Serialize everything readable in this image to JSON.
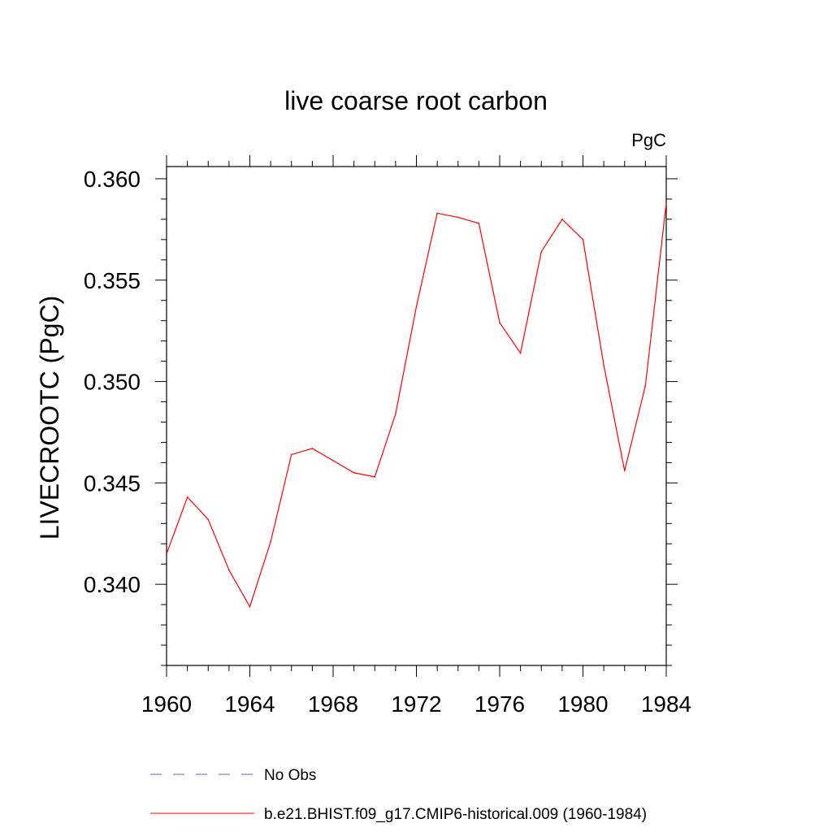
{
  "chart_data": {
    "type": "line",
    "title": "live coarse root carbon",
    "units_label": "PgC",
    "ylabel": "LIVECROOTC  (PgC)",
    "xlabel": "",
    "xlim": [
      1960,
      1984
    ],
    "ylim": [
      0.336,
      0.3606
    ],
    "x_ticks": [
      1960,
      1964,
      1968,
      1972,
      1976,
      1980,
      1984
    ],
    "x_tick_labels": [
      "1960",
      "1964",
      "1968",
      "1972",
      "1976",
      "1980",
      "1984"
    ],
    "y_ticks": [
      0.34,
      0.345,
      0.35,
      0.355,
      0.36
    ],
    "y_tick_labels": [
      "0.340",
      "0.345",
      "0.350",
      "0.355",
      "0.360"
    ],
    "grid": false,
    "legend_position": "bottom",
    "series": [
      {
        "name": "No Obs",
        "color": "#6a5acd",
        "dash": "dashed",
        "x": [],
        "y": []
      },
      {
        "name": "b.e21.BHIST.f09_g17.CMIP6-historical.009 (1960-1984)",
        "color": "#ff0000",
        "dash": "solid",
        "x": [
          1960,
          1961,
          1962,
          1963,
          1964,
          1965,
          1966,
          1967,
          1968,
          1969,
          1970,
          1971,
          1972,
          1973,
          1974,
          1975,
          1976,
          1977,
          1978,
          1979,
          1980,
          1981,
          1982,
          1983,
          1984
        ],
        "y": [
          0.3415,
          0.3443,
          0.3432,
          0.3407,
          0.3389,
          0.3421,
          0.3464,
          0.3467,
          0.3461,
          0.3455,
          0.3453,
          0.3484,
          0.3537,
          0.3583,
          0.3581,
          0.3578,
          0.3529,
          0.3514,
          0.3564,
          0.358,
          0.357,
          0.3508,
          0.3456,
          0.3498,
          0.3588
        ]
      }
    ]
  }
}
